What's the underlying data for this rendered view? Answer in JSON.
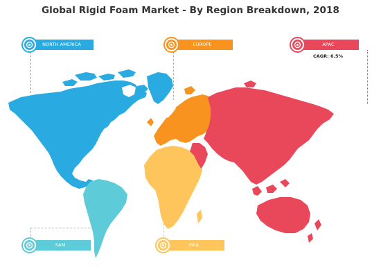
{
  "title": "Global Rigid Foam Market - By Region Breakdown, 2018",
  "colors": {
    "north_america": "#29ABE2",
    "europe": "#F7931E",
    "apac": "#E8485A",
    "sam": "#5ECCD8",
    "mea": "#FDC55C"
  },
  "regions": {
    "north_america": {
      "label": "NORTH AMERICA",
      "icon": "target-icon"
    },
    "europe": {
      "label": "EUROPE",
      "icon": "target-icon"
    },
    "apac": {
      "label": "APAC",
      "icon": "target-icon",
      "cagr": "CAGR: 6.5%"
    },
    "sam": {
      "label": "SAM",
      "icon": "target-icon"
    },
    "mea": {
      "label": "MEA",
      "icon": "target-icon"
    }
  }
}
